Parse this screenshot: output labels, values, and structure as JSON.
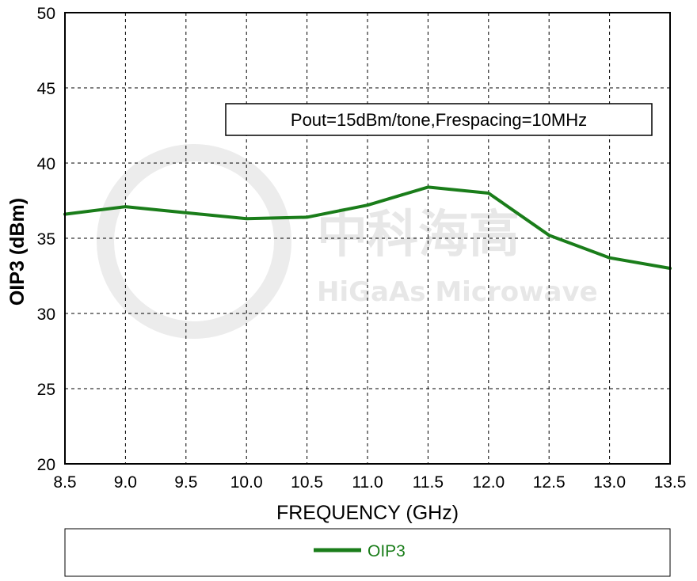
{
  "chart_data": {
    "type": "line",
    "xlabel": "FREQUENCY (GHz)",
    "ylabel": "OIP3 (dBm)",
    "xlim": [
      8.5,
      13.5
    ],
    "ylim": [
      20,
      50
    ],
    "x_ticks": [
      "8.5",
      "9.0",
      "9.5",
      "10.0",
      "10.5",
      "11.0",
      "11.5",
      "12.0",
      "12.5",
      "13.0",
      "13.5"
    ],
    "y_ticks": [
      "20",
      "25",
      "30",
      "35",
      "40",
      "45",
      "50"
    ],
    "grid": true,
    "annotation": "Pout=15dBm/tone,Frespacing=10MHz",
    "legend_position": "bottom",
    "series": [
      {
        "name": "OIP3",
        "color": "#1a7d1a",
        "x": [
          8.5,
          9.0,
          9.5,
          10.0,
          10.5,
          11.0,
          11.5,
          12.0,
          12.5,
          13.0,
          13.5
        ],
        "y": [
          36.6,
          37.1,
          36.7,
          36.3,
          36.4,
          37.2,
          38.4,
          38.0,
          35.2,
          33.7,
          33.0
        ]
      }
    ]
  },
  "watermark": {
    "chinese": "中科海高",
    "english": "HiGaAs Microwave"
  }
}
